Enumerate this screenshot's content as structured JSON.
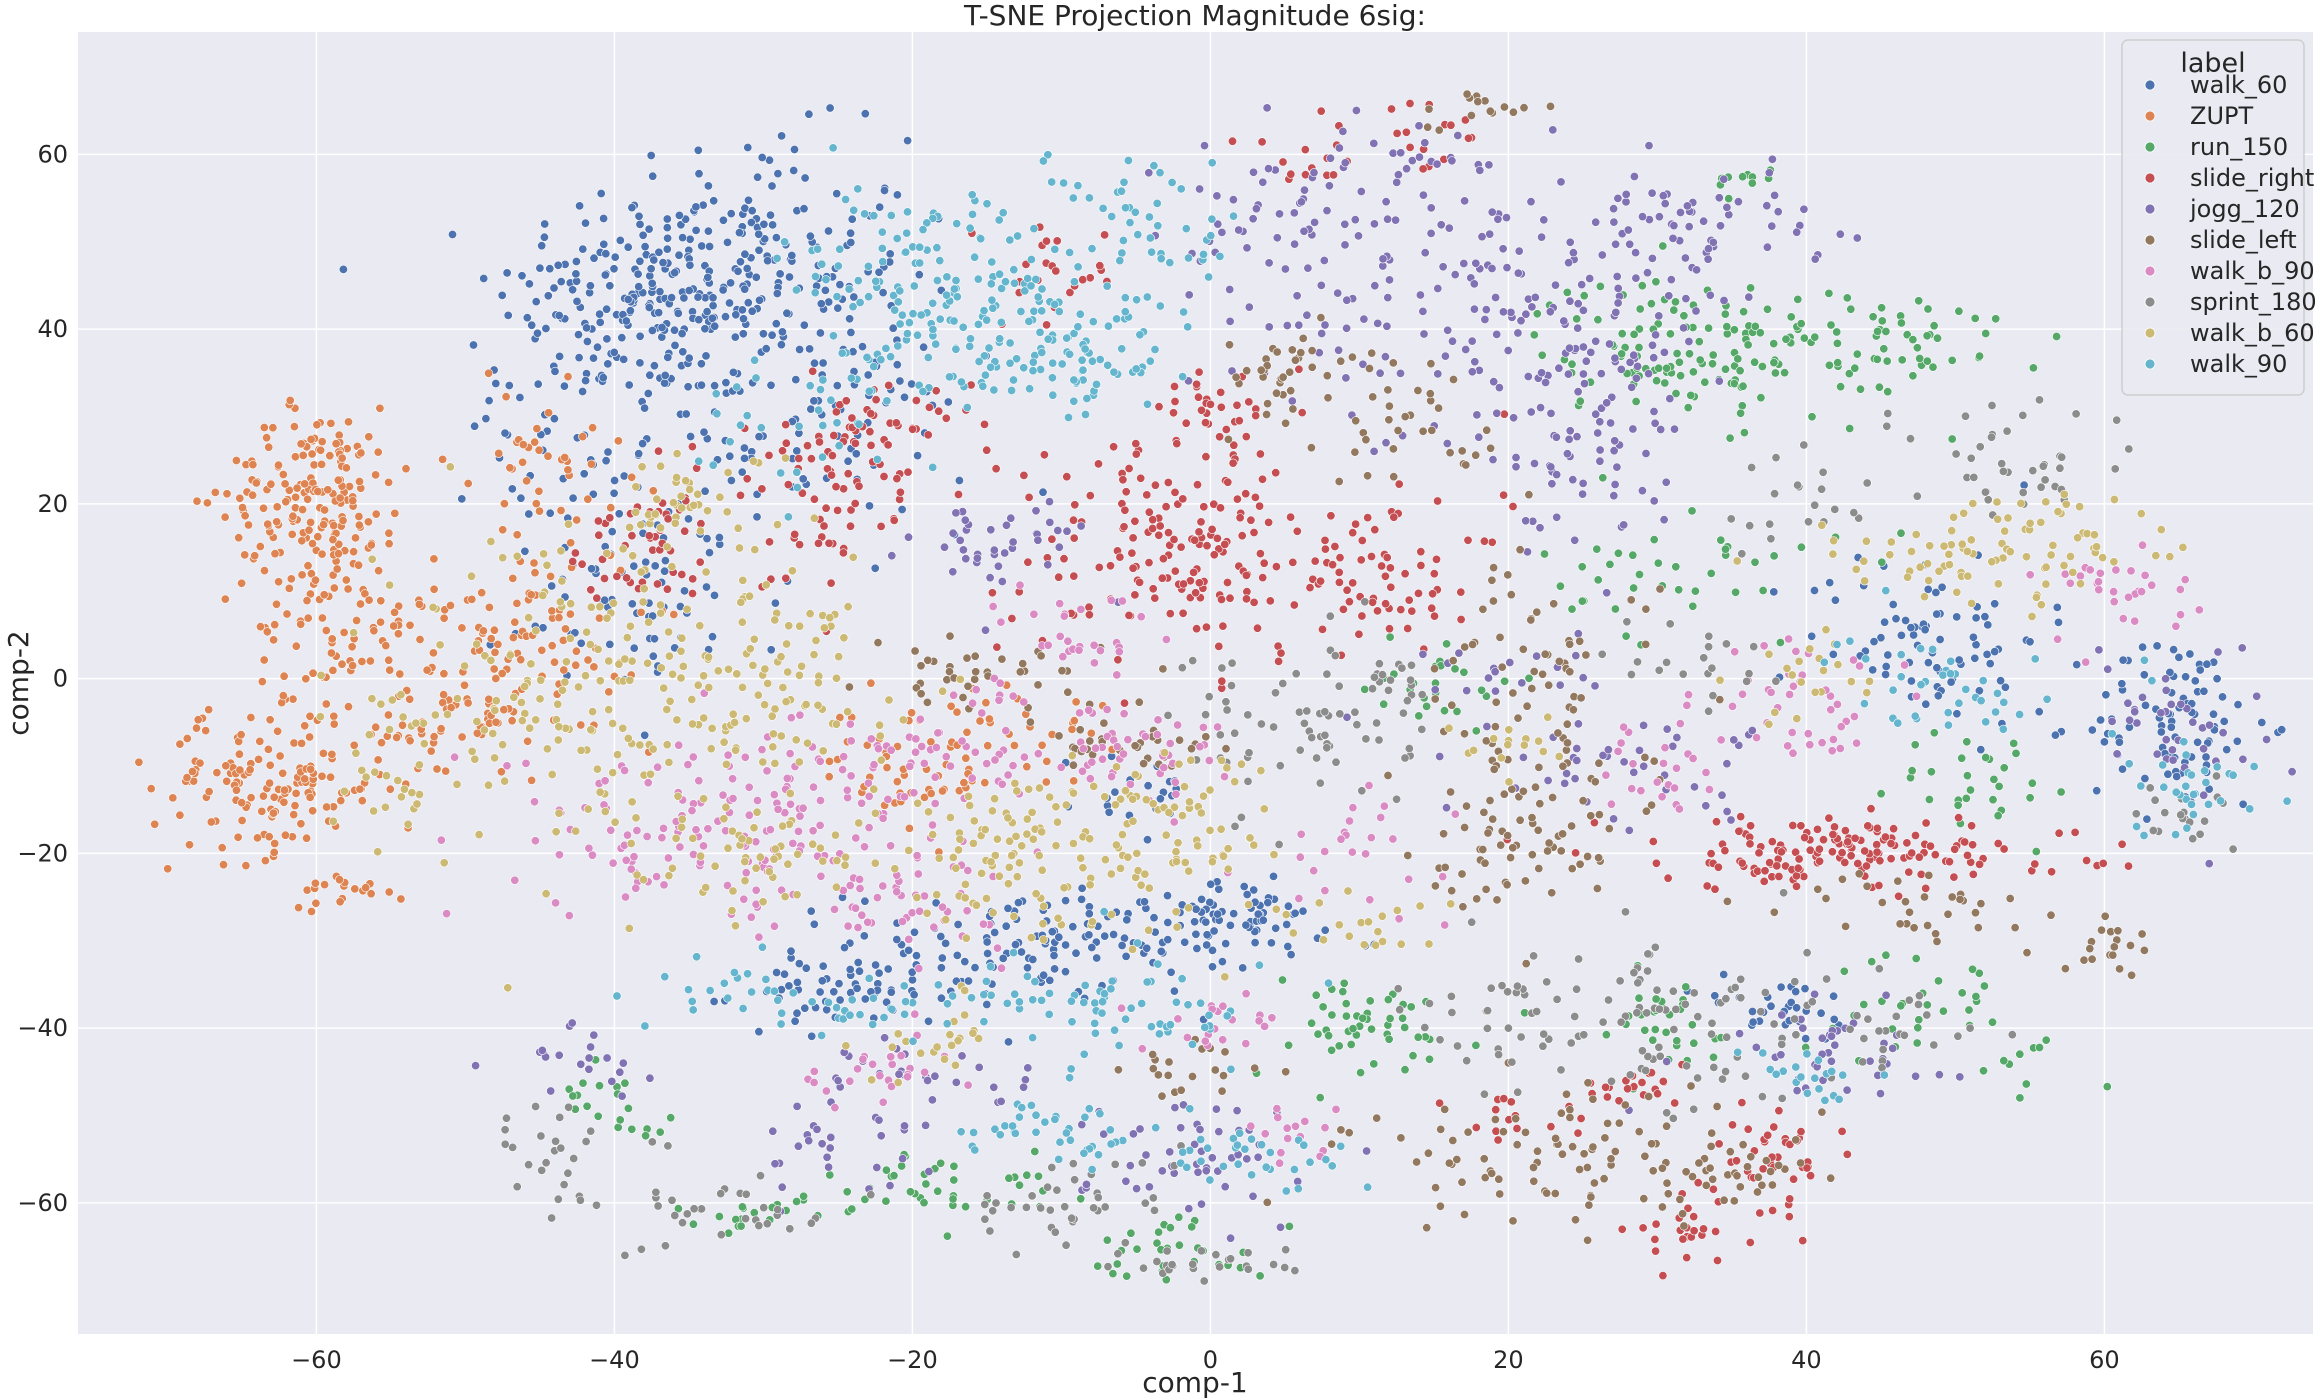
{
  "chart_data": {
    "type": "scatter",
    "title": "T-SNE Projection Magnitude 6sig:",
    "xlabel": "comp-1",
    "ylabel": "comp-2",
    "xlim": [
      -76,
      74
    ],
    "ylim": [
      -75,
      74
    ],
    "xticks": [
      -60,
      -40,
      -20,
      0,
      20,
      40,
      60
    ],
    "yticks": [
      -60,
      -40,
      -20,
      0,
      20,
      40,
      60
    ],
    "grid": true,
    "legend": {
      "title": "label",
      "placement": "top-right"
    },
    "series": [
      {
        "name": "walk_60",
        "color": "#4c72b0",
        "clusters": [
          [
            -38,
            44,
            5,
            6,
            180
          ],
          [
            -30,
            46,
            5,
            8,
            190
          ],
          [
            -28,
            27,
            6,
            5,
            80
          ],
          [
            -38,
            10,
            5,
            6,
            80
          ],
          [
            -44,
            30,
            3,
            5,
            40
          ],
          [
            -10,
            -30,
            7,
            3,
            140
          ],
          [
            2,
            -27,
            3,
            2,
            50
          ],
          [
            -24,
            -36,
            4,
            2,
            60
          ],
          [
            48,
            5,
            4,
            5,
            80
          ],
          [
            65,
            -5,
            3,
            5,
            90
          ],
          [
            -5,
            -13,
            2,
            3,
            20
          ],
          [
            38,
            -38,
            3,
            2,
            30
          ]
        ]
      },
      {
        "name": "ZUPT",
        "color": "#dd8452",
        "clusters": [
          [
            -60,
            21,
            3,
            5,
            180
          ],
          [
            -58,
            6,
            3,
            5,
            80
          ],
          [
            -63,
            -12,
            4,
            4,
            150
          ],
          [
            -46,
            6,
            4,
            5,
            80
          ],
          [
            -50,
            -5,
            3,
            4,
            60
          ],
          [
            -58,
            -24,
            2,
            1,
            20
          ],
          [
            -20,
            -10,
            3,
            4,
            50
          ],
          [
            -13,
            -6,
            3,
            3,
            30
          ],
          [
            -45,
            25,
            3,
            4,
            40
          ]
        ]
      },
      {
        "name": "run_150",
        "color": "#55a868",
        "clusters": [
          [
            30,
            38,
            4,
            4,
            80
          ],
          [
            42,
            38,
            6,
            4,
            100
          ],
          [
            32,
            12,
            5,
            4,
            40
          ],
          [
            -18,
            -58,
            4,
            2,
            40
          ],
          [
            -30,
            -61,
            3,
            1,
            20
          ],
          [
            -2,
            -65,
            3,
            2,
            30
          ],
          [
            10,
            -40,
            4,
            3,
            50
          ],
          [
            30,
            -40,
            3,
            3,
            30
          ],
          [
            48,
            -37,
            3,
            3,
            30
          ],
          [
            -40,
            -48,
            2,
            2,
            20
          ],
          [
            52,
            -12,
            3,
            3,
            30
          ],
          [
            15,
            0,
            3,
            3,
            25
          ],
          [
            36,
            57,
            1,
            1,
            10
          ],
          [
            55,
            -45,
            2,
            2,
            10
          ]
        ]
      },
      {
        "name": "slide_right",
        "color": "#c44e52",
        "clusters": [
          [
            -2,
            15,
            6,
            7,
            180
          ],
          [
            -22,
            28,
            3,
            3,
            50
          ],
          [
            -26,
            20,
            3,
            6,
            50
          ],
          [
            -36,
            18,
            2,
            4,
            30
          ],
          [
            42,
            -20,
            8,
            2,
            160
          ],
          [
            12,
            12,
            4,
            4,
            60
          ],
          [
            38,
            -55,
            2,
            3,
            40
          ],
          [
            32,
            -63,
            2,
            2,
            25
          ],
          [
            28,
            -47,
            2,
            1,
            20
          ],
          [
            20,
            -50,
            3,
            1,
            15
          ],
          [
            0,
            30,
            2,
            3,
            30
          ],
          [
            -10,
            46,
            2,
            3,
            25
          ],
          [
            6,
            60,
            2,
            2,
            15
          ],
          [
            -40,
            12,
            3,
            3,
            20
          ],
          [
            15,
            62,
            2,
            2,
            15
          ]
        ]
      },
      {
        "name": "jogg_120",
        "color": "#8172b3",
        "clusters": [
          [
            20,
            42,
            8,
            7,
            150
          ],
          [
            25,
            28,
            4,
            7,
            80
          ],
          [
            33,
            52,
            4,
            3,
            60
          ],
          [
            5,
            52,
            4,
            5,
            60
          ],
          [
            -14,
            15,
            3,
            3,
            40
          ],
          [
            28,
            -10,
            5,
            3,
            40
          ],
          [
            40,
            -42,
            5,
            3,
            40
          ],
          [
            65,
            -5,
            3,
            5,
            40
          ],
          [
            0,
            -55,
            4,
            4,
            50
          ],
          [
            -25,
            -53,
            3,
            3,
            30
          ],
          [
            -42,
            -45,
            3,
            3,
            20
          ],
          [
            13,
            60,
            3,
            3,
            25
          ],
          [
            -18,
            -45,
            3,
            2,
            25
          ],
          [
            20,
            0,
            3,
            3,
            20
          ]
        ]
      },
      {
        "name": "slide_left",
        "color": "#937860",
        "clusters": [
          [
            22,
            -6,
            4,
            10,
            100
          ],
          [
            25,
            -55,
            8,
            4,
            100
          ],
          [
            20,
            -20,
            3,
            3,
            40
          ],
          [
            -15,
            0,
            4,
            2,
            40
          ],
          [
            5,
            35,
            3,
            3,
            40
          ],
          [
            14,
            28,
            3,
            3,
            30
          ],
          [
            47,
            -26,
            4,
            2,
            30
          ],
          [
            60,
            -30,
            2,
            2,
            20
          ],
          [
            -5,
            -8,
            3,
            2,
            30
          ],
          [
            18,
            65,
            2,
            1,
            15
          ],
          [
            0,
            -45,
            3,
            2,
            20
          ],
          [
            35,
            -57,
            3,
            2,
            20
          ]
        ]
      },
      {
        "name": "walk_b_90",
        "color": "#da8bc3",
        "clusters": [
          [
            -33,
            -17,
            7,
            5,
            160
          ],
          [
            -18,
            -8,
            4,
            4,
            60
          ],
          [
            -5,
            -8,
            4,
            3,
            50
          ],
          [
            10,
            -20,
            3,
            3,
            25
          ],
          [
            -20,
            -25,
            3,
            3,
            40
          ],
          [
            40,
            -3,
            3,
            4,
            40
          ],
          [
            30,
            -10,
            2,
            3,
            25
          ],
          [
            60,
            10,
            3,
            3,
            30
          ],
          [
            -22,
            -45,
            3,
            2,
            25
          ],
          [
            0,
            -40,
            3,
            2,
            20
          ],
          [
            -8,
            5,
            3,
            3,
            30
          ],
          [
            5,
            -52,
            2,
            2,
            15
          ]
        ]
      },
      {
        "name": "sprint_180",
        "color": "#8c8c8c",
        "clusters": [
          [
            5,
            -5,
            4,
            5,
            60
          ],
          [
            30,
            -40,
            5,
            6,
            80
          ],
          [
            -32,
            -60,
            3,
            3,
            30
          ],
          [
            -10,
            -60,
            4,
            3,
            40
          ],
          [
            0,
            -67,
            3,
            1,
            25
          ],
          [
            55,
            25,
            4,
            5,
            40
          ],
          [
            -44,
            -55,
            2,
            4,
            25
          ],
          [
            12,
            -2,
            2,
            3,
            20
          ],
          [
            32,
            2,
            3,
            3,
            20
          ],
          [
            45,
            -40,
            4,
            3,
            30
          ],
          [
            65,
            -15,
            2,
            3,
            20
          ],
          [
            40,
            20,
            3,
            3,
            20
          ],
          [
            20,
            -38,
            3,
            3,
            25
          ]
        ]
      },
      {
        "name": "walk_b_60",
        "color": "#ccb974",
        "clusters": [
          [
            -43,
            0,
            6,
            10,
            160
          ],
          [
            -30,
            0,
            5,
            6,
            100
          ],
          [
            -13,
            -20,
            5,
            5,
            120
          ],
          [
            -2,
            -17,
            3,
            5,
            60
          ],
          [
            -30,
            -20,
            4,
            3,
            50
          ],
          [
            -35,
            20,
            3,
            3,
            40
          ],
          [
            -55,
            -10,
            3,
            5,
            30
          ],
          [
            50,
            14,
            5,
            3,
            50
          ],
          [
            58,
            15,
            4,
            3,
            40
          ],
          [
            40,
            0,
            3,
            3,
            20
          ],
          [
            10,
            -28,
            3,
            2,
            20
          ],
          [
            20,
            -8,
            2,
            2,
            15
          ],
          [
            -20,
            -42,
            3,
            2,
            20
          ]
        ]
      },
      {
        "name": "walk_90",
        "color": "#64b5cd",
        "clusters": [
          [
            -18,
            48,
            5,
            5,
            100
          ],
          [
            -15,
            38,
            5,
            5,
            100
          ],
          [
            -8,
            38,
            4,
            4,
            60
          ],
          [
            -4,
            52,
            3,
            4,
            40
          ],
          [
            -5,
            -38,
            5,
            3,
            60
          ],
          [
            -20,
            -38,
            4,
            2,
            30
          ],
          [
            -32,
            -36,
            3,
            2,
            25
          ],
          [
            -10,
            -52,
            4,
            2,
            40
          ],
          [
            2,
            -55,
            4,
            2,
            30
          ],
          [
            50,
            0,
            4,
            3,
            40
          ],
          [
            66,
            -13,
            2,
            3,
            30
          ],
          [
            -28,
            30,
            3,
            4,
            30
          ],
          [
            40,
            -45,
            2,
            2,
            20
          ]
        ]
      }
    ]
  }
}
